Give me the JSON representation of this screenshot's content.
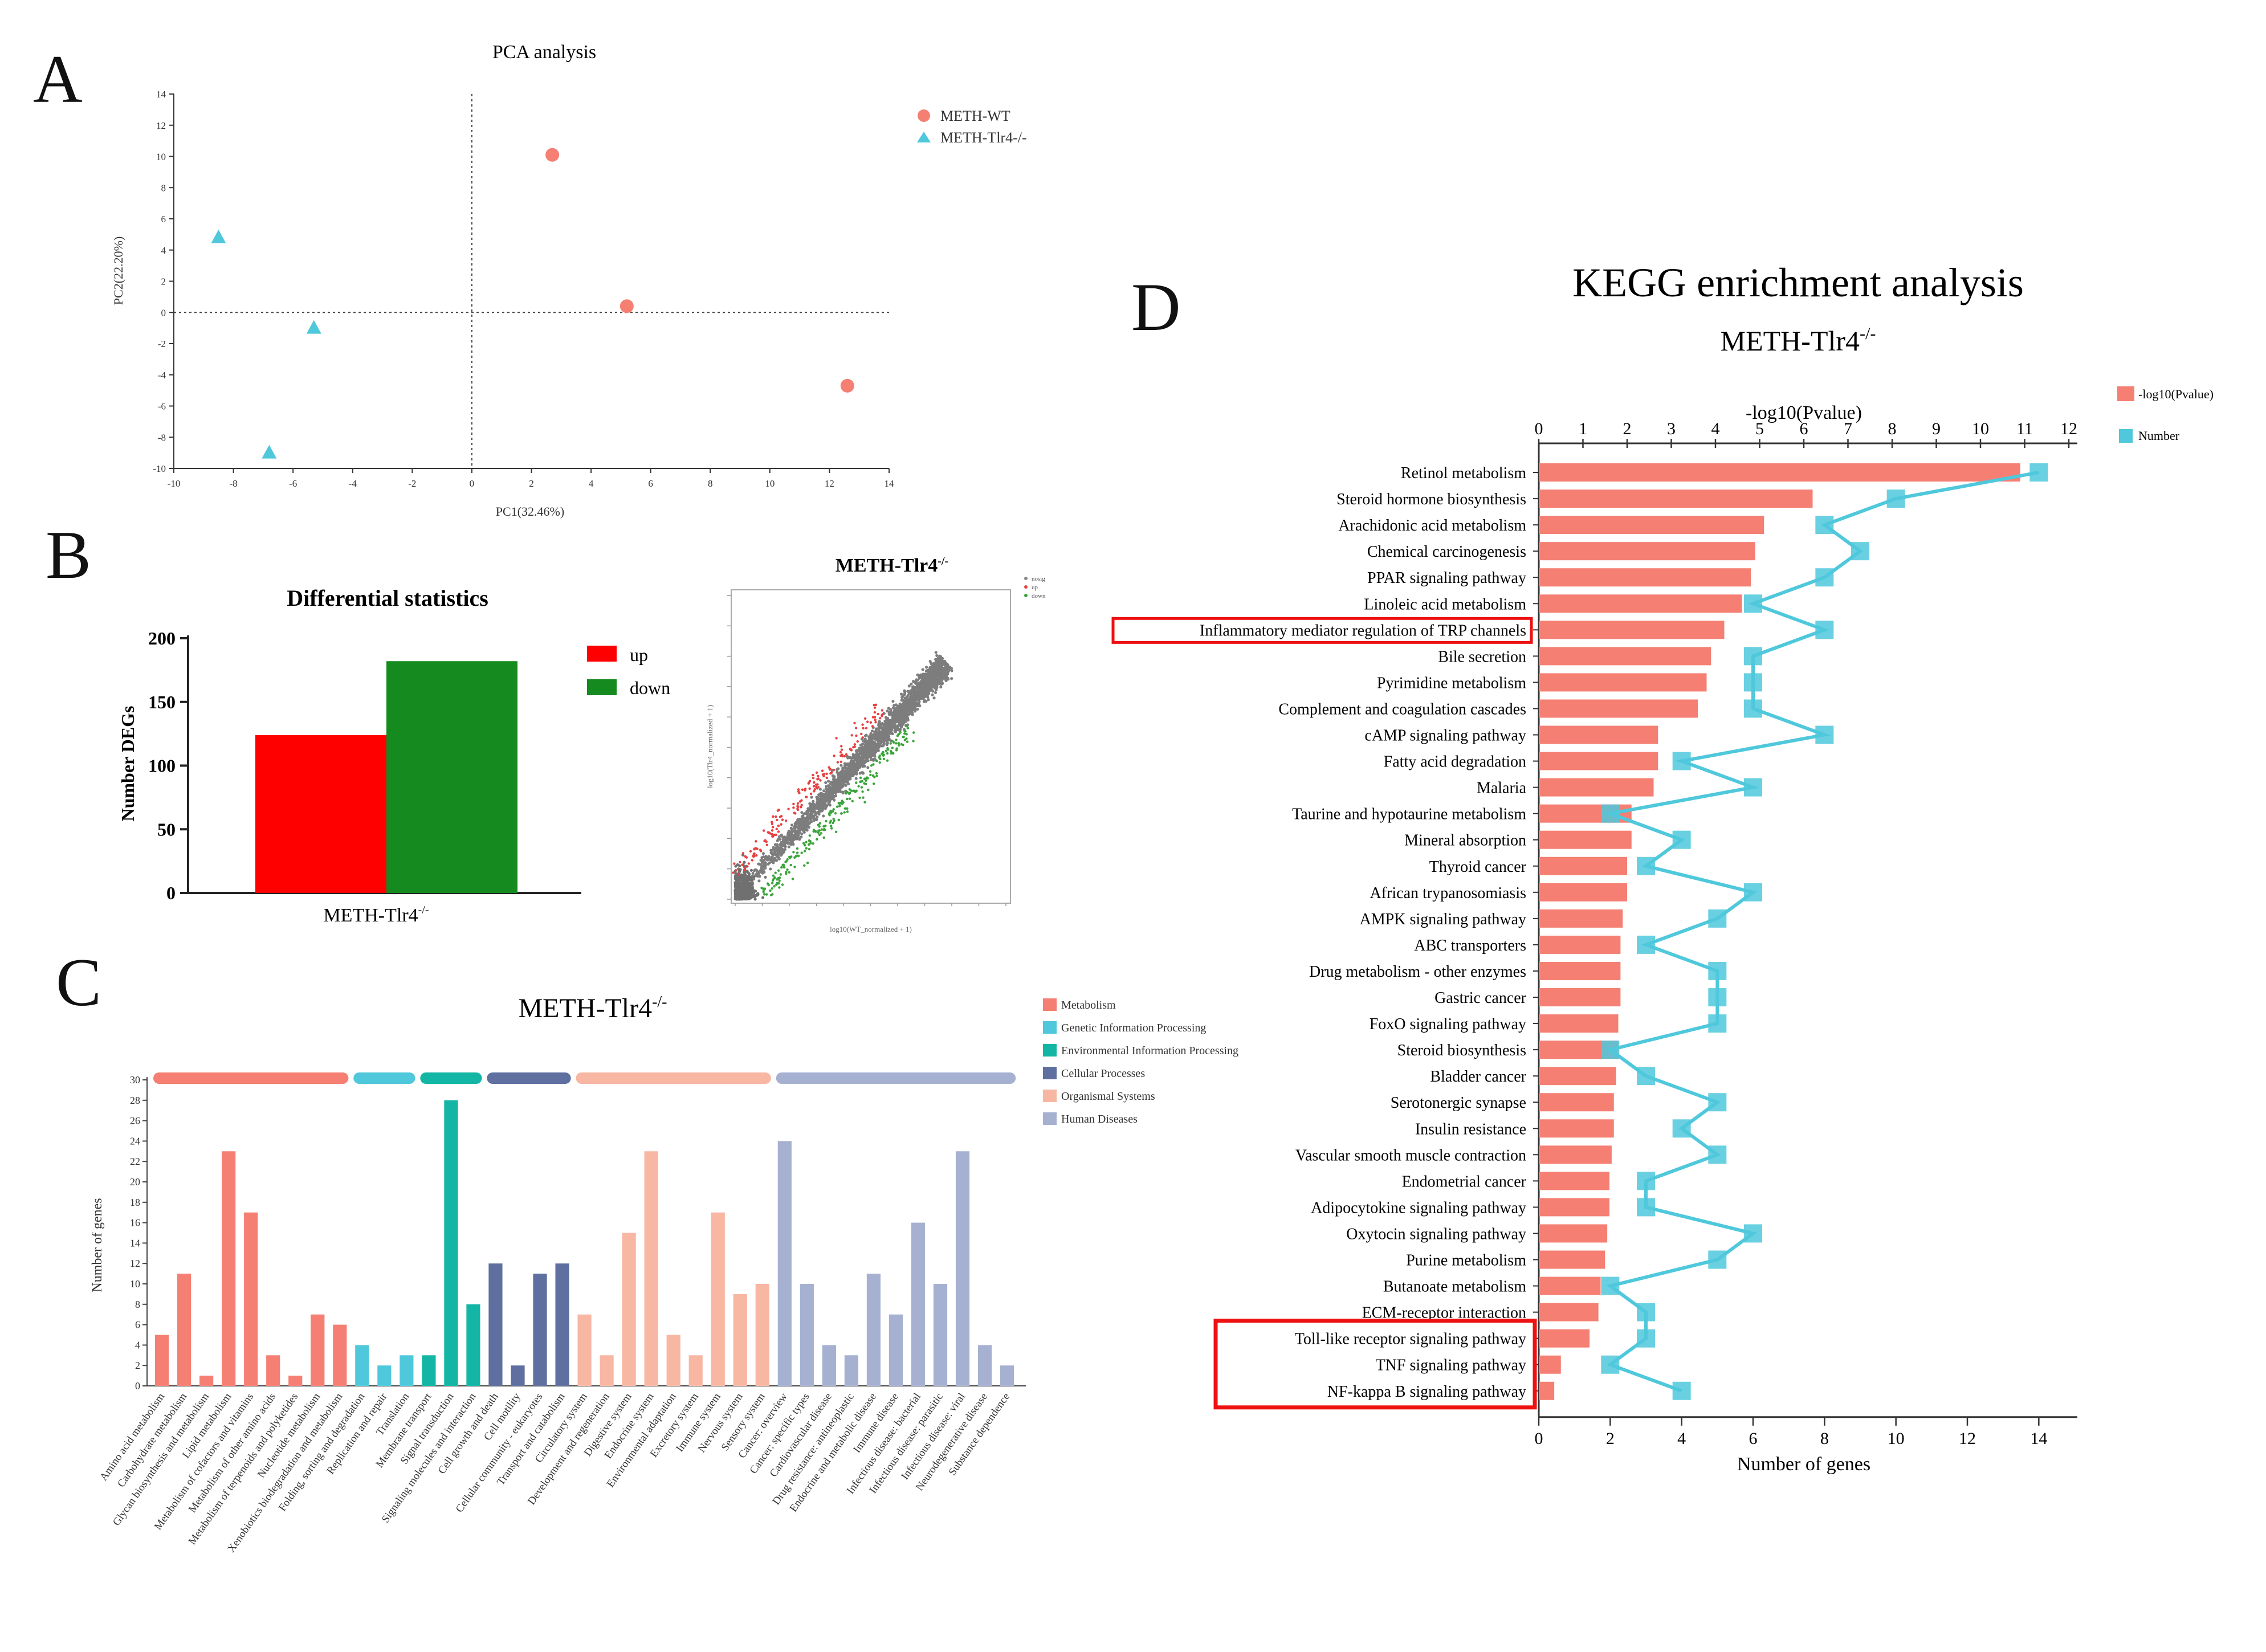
{
  "panels": {
    "A": "A",
    "B": "B",
    "C": "C",
    "D": "D"
  },
  "colors": {
    "salmon": "#F47F72",
    "cyan": "#4FC8DC",
    "red": "#FF0000",
    "green": "#158A1F",
    "teal": "#13B6A5",
    "navy": "#5F6FA0",
    "peach": "#F7B7A3",
    "lavender": "#A6B1D1"
  },
  "chart_data": [
    {
      "id": "pca",
      "type": "scatter",
      "title": "PCA analysis",
      "xlabel": "PC1(32.46%)",
      "ylabel": "PC2(22.20%)",
      "xlim": [
        -10,
        14
      ],
      "ylim": [
        -10,
        14
      ],
      "xticks": [
        -10,
        -8,
        -6,
        -4,
        -2,
        0,
        2,
        4,
        6,
        8,
        10,
        12,
        14
      ],
      "yticks": [
        -10,
        -8,
        -6,
        -4,
        -2,
        0,
        2,
        4,
        6,
        8,
        10,
        12,
        14
      ],
      "series": [
        {
          "name": "METH-WT",
          "marker": "circle",
          "color": "#F47F72",
          "points": [
            [
              2.7,
              10.1
            ],
            [
              5.2,
              0.4
            ],
            [
              12.6,
              -4.7
            ]
          ]
        },
        {
          "name": "METH-Tlr4-/-",
          "marker": "triangle",
          "color": "#4FC8DC",
          "points": [
            [
              -8.5,
              4.8
            ],
            [
              -5.3,
              -1.0
            ],
            [
              -6.8,
              -9.0
            ]
          ]
        }
      ]
    },
    {
      "id": "diffstats",
      "type": "bar",
      "title": "Differential statistics",
      "ylabel": "Number DEGs",
      "xlabel": "METH-Tlr4",
      "xlabel_sup": "-/-",
      "ylim": [
        0,
        200
      ],
      "yticks": [
        0,
        50,
        100,
        150,
        200
      ],
      "series": [
        {
          "name": "up",
          "value": 124,
          "color": "#FF0000"
        },
        {
          "name": "down",
          "value": 182,
          "color": "#158A1F"
        }
      ]
    },
    {
      "id": "volcano",
      "type": "scatter",
      "title": "METH-Tlr4",
      "title_sup": "-/-",
      "xlabel": "log10(WT_normalized + 1)",
      "ylabel": "log10(Tlr4_normalized + 1)",
      "legend": [
        "nosig",
        "up",
        "down"
      ],
      "xlim": [
        0,
        5
      ],
      "ylim": [
        0,
        5
      ],
      "note": "dense diagonal cloud of grey non-significant genes with red up-regulated genes above and green down-regulated genes below"
    },
    {
      "id": "go",
      "type": "bar",
      "title": "METH-Tlr4",
      "title_sup": "-/-",
      "ylabel": "Number of genes",
      "ylim": [
        0,
        30
      ],
      "yticks": [
        0,
        2,
        4,
        6,
        8,
        10,
        12,
        14,
        16,
        18,
        20,
        22,
        24,
        26,
        28,
        30
      ],
      "legend": [
        "Metabolism",
        "Genetic Information Processing",
        "Environmental Information Processing",
        "Cellular Processes",
        "Organismal Systems",
        "Human Diseases"
      ],
      "categories": [
        "Amino acid metabolism",
        "Carbohydrate metabolism",
        "Glycan biosynthesis and metabolism",
        "Lipid metabolism",
        "Metabolism of cofactors and vitamins",
        "Metabolism of other amino acids",
        "Metabolism of terpenoids and polyketides",
        "Nucleotide metabolism",
        "Xenobiotics biodegradation and metabolism",
        "Folding, sorting and degradation",
        "Replication and repair",
        "Translation",
        "Membrane transport",
        "Signal transduction",
        "Signaling molecules and interaction",
        "Cell growth and death",
        "Cell motility",
        "Cellular community - eukaryotes",
        "Transport and catabolism",
        "Circulatory system",
        "Development and regeneration",
        "Digestive system",
        "Endocrine system",
        "Environmental adaptation",
        "Excretory system",
        "Immune system",
        "Nervous system",
        "Sensory system",
        "Cancer: overview",
        "Cancer: specific types",
        "Cardiovascular disease",
        "Drug resistance: antineoplastic",
        "Endocrine and metabolic disease",
        "Immune disease",
        "Infectious disease: bacterial",
        "Infectious disease: parasitic",
        "Infectious disease: viral",
        "Neurodegenerative disease",
        "Substance dependence"
      ],
      "values": [
        5,
        11,
        1,
        23,
        17,
        3,
        1,
        7,
        6,
        4,
        2,
        3,
        3,
        28,
        8,
        12,
        2,
        11,
        12,
        7,
        3,
        15,
        23,
        5,
        3,
        17,
        9,
        10,
        24,
        10,
        4,
        3,
        11,
        7,
        16,
        10,
        23,
        4,
        2
      ],
      "groups": [
        9,
        3,
        3,
        4,
        9,
        11
      ]
    },
    {
      "id": "kegg",
      "type": "bar",
      "title": "KEGG enrichment analysis",
      "subtitle": "METH-Tlr4",
      "subtitle_sup": "-/-",
      "top_axis_label": "-log10(Pvalue)",
      "bottom_axis_label": "Number of genes",
      "top_xlim": [
        0,
        12
      ],
      "top_xticks": [
        0,
        1,
        2,
        3,
        4,
        5,
        6,
        7,
        8,
        9,
        10,
        11,
        12
      ],
      "bottom_xlim": [
        0,
        15
      ],
      "bottom_xticks": [
        0,
        2,
        4,
        6,
        8,
        10,
        12,
        14
      ],
      "legend": [
        "-log10(Pvalue)",
        "Number"
      ],
      "categories": [
        "Retinol metabolism",
        "Steroid hormone biosynthesis",
        "Arachidonic acid metabolism",
        "Chemical carcinogenesis",
        "PPAR signaling pathway",
        "Linoleic acid metabolism",
        "Inflammatory mediator regulation of TRP channels",
        "Bile secretion",
        "Pyrimidine metabolism",
        "Complement and coagulation cascades",
        "cAMP signaling pathway",
        "Fatty acid degradation",
        "Malaria",
        "Taurine and hypotaurine metabolism",
        "Mineral absorption",
        "Thyroid cancer",
        "African trypanosomiasis",
        "AMPK signaling pathway",
        "ABC transporters",
        "Drug metabolism - other enzymes",
        "Gastric cancer",
        "FoxO signaling pathway",
        "Steroid biosynthesis",
        "Bladder cancer",
        "Serotonergic synapse",
        "Insulin resistance",
        "Vascular smooth muscle contraction",
        "Endometrial cancer",
        "Adipocytokine signaling pathway",
        "Oxytocin signaling pathway",
        "Purine metabolism",
        "Butanoate metabolism",
        "ECM-receptor interaction",
        "Toll-like receptor signaling pathway",
        "TNF signaling pathway",
        "NF-kappa B signaling pathway"
      ],
      "pvalues": [
        10.9,
        6.2,
        5.1,
        4.9,
        4.8,
        4.6,
        4.2,
        3.9,
        3.8,
        3.6,
        2.7,
        2.7,
        2.6,
        2.1,
        2.1,
        2.0,
        2.0,
        1.9,
        1.85,
        1.85,
        1.85,
        1.8,
        1.8,
        1.75,
        1.7,
        1.7,
        1.65,
        1.6,
        1.6,
        1.55,
        1.5,
        1.4,
        1.35,
        1.15,
        0.5,
        0.35
      ],
      "numbers": [
        14,
        10,
        8,
        9,
        8,
        6,
        8,
        6,
        6,
        6,
        8,
        4,
        6,
        2,
        4,
        3,
        6,
        5,
        3,
        5,
        5,
        5,
        2,
        3,
        5,
        4,
        5,
        3,
        3,
        6,
        5,
        2,
        3,
        3,
        2,
        4
      ],
      "highlighted": [
        "Inflammatory mediator regulation of TRP channels",
        "Toll-like receptor signaling pathway",
        "TNF signaling pathway",
        "NF-kappa B signaling pathway"
      ]
    }
  ]
}
